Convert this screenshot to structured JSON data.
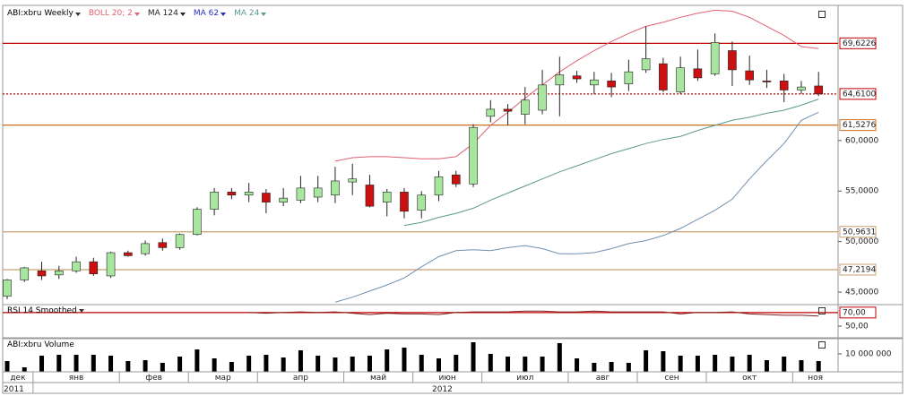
{
  "chart_data": [
    {
      "type": "candlestick",
      "title": "ABI:xbru Weekly",
      "categories": [
        "дек",
        null,
        "янв",
        null,
        null,
        null,
        null,
        "фев",
        null,
        null,
        null,
        "мар",
        null,
        null,
        null,
        "апр",
        null,
        null,
        null,
        null,
        "май",
        null,
        null,
        null,
        "июн",
        null,
        null,
        null,
        "июл",
        null,
        null,
        null,
        null,
        "авг",
        null,
        null,
        null,
        "сен",
        null,
        null,
        null,
        "окт",
        null,
        null,
        null,
        null,
        "ноя",
        null
      ],
      "years": [
        "2011",
        "2012"
      ],
      "open": [
        44.6,
        46.2,
        47.1,
        46.7,
        47.1,
        48.0,
        46.6,
        48.9,
        48.8,
        49.9,
        49.4,
        50.7,
        53.2,
        54.9,
        54.6,
        54.8,
        53.9,
        54.1,
        54.4,
        54.6,
        55.9,
        55.6,
        53.9,
        54.9,
        53.1,
        54.6,
        56.6,
        55.7,
        62.4,
        63.1,
        62.6,
        63.0,
        65.5,
        66.4,
        65.5,
        65.9,
        65.6,
        67.0,
        67.6,
        64.8,
        67.1,
        66.6,
        68.9,
        66.9,
        65.9,
        65.9,
        65.0,
        65.4
      ],
      "high": [
        46.3,
        47.5,
        48.0,
        47.6,
        48.5,
        48.4,
        49.0,
        49.1,
        50.1,
        50.3,
        50.8,
        53.4,
        55.3,
        55.3,
        55.8,
        55.2,
        55.3,
        56.5,
        56.5,
        57.4,
        57.7,
        56.6,
        55.2,
        55.3,
        55.0,
        57.0,
        57.0,
        61.6,
        64.0,
        63.6,
        65.3,
        67.0,
        68.3,
        66.9,
        66.8,
        66.7,
        68.0,
        71.3,
        68.2,
        68.3,
        69.0,
        70.6,
        69.8,
        68.4,
        67.0,
        66.6,
        65.9,
        66.8
      ],
      "low": [
        44.3,
        46.0,
        46.2,
        46.3,
        46.9,
        46.6,
        46.4,
        48.5,
        48.6,
        49.1,
        49.2,
        50.6,
        52.6,
        54.2,
        53.9,
        52.8,
        53.5,
        53.8,
        53.9,
        53.8,
        54.6,
        53.4,
        52.5,
        52.3,
        52.3,
        54.0,
        55.4,
        55.4,
        61.8,
        61.5,
        61.6,
        62.6,
        62.4,
        65.7,
        64.6,
        64.3,
        64.9,
        66.7,
        64.8,
        64.6,
        65.9,
        66.4,
        65.4,
        65.5,
        65.2,
        63.8,
        64.6,
        64.4
      ],
      "close": [
        46.2,
        47.4,
        46.6,
        47.1,
        48.0,
        46.8,
        48.9,
        48.6,
        49.8,
        49.4,
        50.7,
        53.2,
        54.9,
        54.6,
        54.9,
        53.9,
        54.3,
        55.3,
        55.3,
        56.0,
        56.2,
        53.5,
        54.9,
        53.0,
        54.6,
        56.4,
        55.7,
        61.3,
        63.1,
        62.9,
        64.0,
        65.5,
        66.5,
        66.1,
        66.0,
        65.3,
        66.8,
        68.1,
        65.0,
        67.2,
        66.2,
        69.7,
        67.0,
        66.0,
        65.8,
        65.0,
        65.3,
        64.61
      ],
      "up_color": "#a8e6a0",
      "down_color": "#cc1010",
      "ylim": [
        43.76,
        73.2
      ],
      "yticks": [
        {
          "value": 45,
          "label": "45,0000"
        },
        {
          "value": 50,
          "label": "50,0000"
        },
        {
          "value": 55,
          "label": "55,0000"
        },
        {
          "value": 60,
          "label": "60,0000"
        }
      ],
      "levels": [
        {
          "value": 69.6226,
          "label": "69,6226",
          "color": "#c00000",
          "style": "solid"
        },
        {
          "value": 64.61,
          "label": "64,6100",
          "color": "#c00000",
          "style": "dotted"
        },
        {
          "value": 61.5276,
          "label": "61,5276",
          "color": "#c87020",
          "style": "solid"
        },
        {
          "value": 50.9631,
          "label": "50,9631",
          "color": "#c8a070",
          "style": "solid"
        },
        {
          "value": 47.2194,
          "label": "47,2194",
          "color": "#c8a070",
          "style": "solid"
        }
      ],
      "indicators": [
        {
          "name": "BOLL 20; 2",
          "color": "#e06070",
          "upper": [
            null,
            null,
            null,
            null,
            null,
            null,
            null,
            null,
            null,
            null,
            null,
            null,
            null,
            null,
            null,
            null,
            null,
            null,
            null,
            57.96,
            58.3,
            58.4,
            58.4,
            58.3,
            58.2,
            58.2,
            58.4,
            59.7,
            61.5,
            62.8,
            64.2,
            65.5,
            66.8,
            67.9,
            68.9,
            69.8,
            70.6,
            71.3,
            71.7,
            72.2,
            72.6,
            72.9,
            72.8,
            72.2,
            71.3,
            70.4,
            69.3,
            69.1
          ],
          "lower": [
            null,
            null,
            null,
            null,
            null,
            null,
            null,
            null,
            null,
            null,
            null,
            null,
            null,
            null,
            null,
            null,
            null,
            null,
            null,
            44.0,
            44.5,
            45.1,
            45.7,
            46.4,
            47.5,
            48.5,
            49.1,
            49.2,
            49.1,
            49.4,
            49.6,
            49.3,
            48.8,
            48.8,
            48.9,
            49.3,
            49.8,
            50.1,
            50.6,
            51.3,
            52.2,
            53.1,
            54.2,
            56.2,
            58.0,
            59.7,
            62.0,
            62.8
          ],
          "lower_color": "#7090b0"
        },
        {
          "name": "MA 124",
          "color": "#222222"
        },
        {
          "name": "MA 62",
          "color": "#2030c0"
        },
        {
          "name": "MA 24",
          "color": "#5a9a90",
          "values": [
            null,
            null,
            null,
            null,
            null,
            null,
            null,
            null,
            null,
            null,
            null,
            null,
            null,
            null,
            null,
            null,
            null,
            null,
            null,
            null,
            null,
            null,
            null,
            51.6,
            51.9,
            52.4,
            52.8,
            53.3,
            54.1,
            54.8,
            55.5,
            56.2,
            56.9,
            57.5,
            58.1,
            58.7,
            59.2,
            59.7,
            60.1,
            60.4,
            61.0,
            61.5,
            62.0,
            62.3,
            62.7,
            63.0,
            63.5,
            64.1
          ]
        }
      ]
    },
    {
      "type": "line",
      "title": "RSI 14 Smoothed",
      "color": "#802020",
      "values": [
        null,
        null,
        null,
        null,
        null,
        null,
        null,
        null,
        null,
        null,
        null,
        null,
        null,
        null,
        70,
        69,
        70,
        71,
        70,
        71,
        69,
        67,
        69,
        68,
        68,
        67,
        70,
        71,
        71,
        71,
        72,
        72,
        71,
        71,
        72,
        71,
        71,
        71,
        71,
        68,
        70,
        70,
        71,
        68,
        67,
        66,
        66,
        65
      ],
      "ylim": [
        33,
        79
      ],
      "yticks": [
        {
          "value": 50,
          "label": "50,00"
        }
      ],
      "levels": [
        {
          "value": 70,
          "label": "70,00",
          "color": "#c00000",
          "style": "solid"
        }
      ]
    },
    {
      "type": "bar",
      "title": "ABI:xbru Volume",
      "color": "#000000",
      "values": [
        6000000,
        2500000,
        9000000,
        9500000,
        9500000,
        9500000,
        9000000,
        6000000,
        6500000,
        5000000,
        8500000,
        12500000,
        7500000,
        5500000,
        9000000,
        9500000,
        8000000,
        12000000,
        9000000,
        8000000,
        8500000,
        9000000,
        12500000,
        13500000,
        9500000,
        7500000,
        9500000,
        16500000,
        10000000,
        8500000,
        8500000,
        8500000,
        16000000,
        7500000,
        5000000,
        5500000,
        5000000,
        12000000,
        11500000,
        9000000,
        9000000,
        9500000,
        8500000,
        9500000,
        6500000,
        8500000,
        6500000,
        6000000
      ],
      "ylim": [
        0,
        17500000
      ],
      "yticks": [
        {
          "value": 10000000,
          "label": "10 000 000"
        }
      ]
    }
  ]
}
